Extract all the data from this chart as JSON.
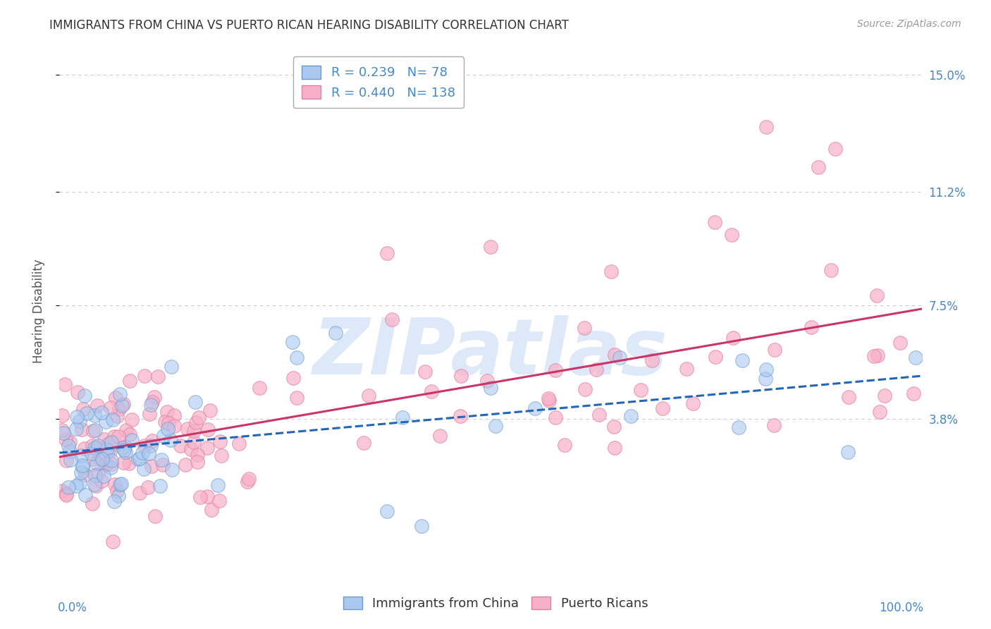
{
  "title": "IMMIGRANTS FROM CHINA VS PUERTO RICAN HEARING DISABILITY CORRELATION CHART",
  "source": "Source: ZipAtlas.com",
  "ylabel": "Hearing Disability",
  "xlim": [
    0.0,
    1.0
  ],
  "ylim": [
    -0.012,
    0.158
  ],
  "series1_label": "Immigrants from China",
  "series1_R": 0.239,
  "series1_N": 78,
  "series1_color": "#aac8f0",
  "series1_edge": "#6699cc",
  "series2_label": "Puerto Ricans",
  "series2_R": 0.44,
  "series2_N": 138,
  "series2_color": "#f8b0c8",
  "series2_edge": "#e080a0",
  "trendline1_color": "#2266bb",
  "trendline2_color": "#cc3366",
  "watermark": "ZIPatlas",
  "watermark_color": "#dde8f8",
  "background_color": "#ffffff",
  "grid_color": "#cccccc",
  "title_color": "#333333",
  "axis_color": "#4488cc",
  "ytick_vals": [
    0.038,
    0.075,
    0.112,
    0.15
  ],
  "ytick_labels": [
    "3.8%",
    "7.5%",
    "11.2%",
    "15.0%"
  ]
}
